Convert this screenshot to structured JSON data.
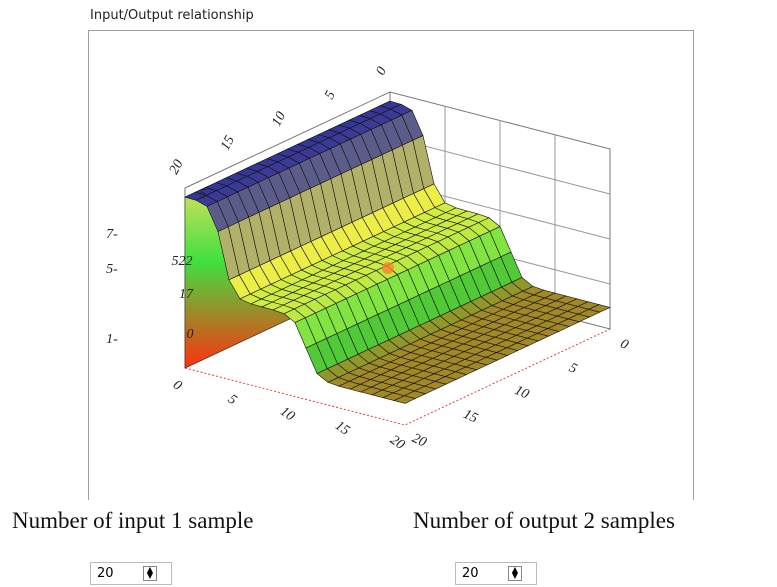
{
  "panel": {
    "title": "Input/Output relationship",
    "back_axis_labels": [
      "0",
      "5",
      "10",
      "15",
      "20"
    ],
    "front_left_axis_labels": [
      "0",
      "5",
      "10",
      "15",
      "20"
    ],
    "front_right_axis_labels": [
      "0",
      "5",
      "10",
      "15",
      "20"
    ],
    "z_labels": [
      "5",
      "522",
      "17",
      "0"
    ],
    "left_labels": [
      "7-",
      "5-",
      "1-"
    ]
  },
  "controls": [
    {
      "label": "Number of input 1 sample",
      "value": "20"
    },
    {
      "label": "Number of output 2 samples",
      "value": "20"
    }
  ]
}
